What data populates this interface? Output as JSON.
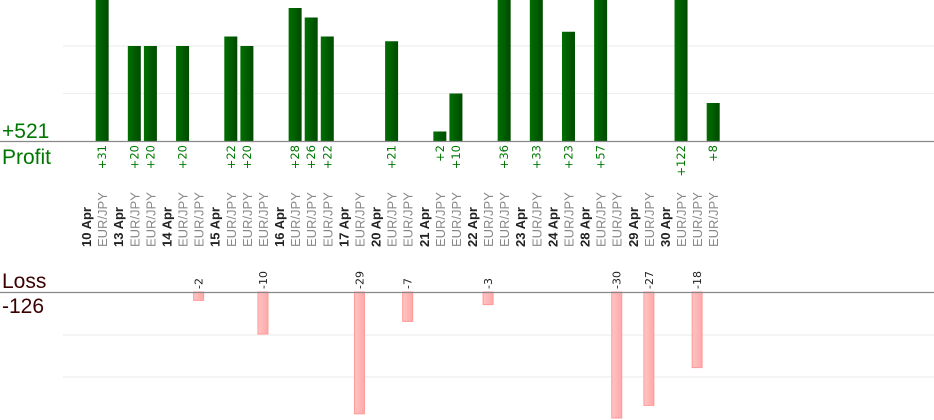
{
  "chart_data": {
    "type": "bar",
    "profit_total": "+521",
    "profit_title": "Profit",
    "loss_total": "-126",
    "loss_title": "Loss",
    "profit_grid_step": 10,
    "loss_grid_step": 10,
    "colors": {
      "profit": "#006600",
      "loss": "#ffb3b3",
      "profit_text": "#007700",
      "loss_text": "#3a0000"
    },
    "groups": [
      {
        "date": "10 Apr",
        "trades": [
          {
            "symbol": "EUR/JPY",
            "value": 31
          }
        ]
      },
      {
        "date": "13 Apr",
        "trades": [
          {
            "symbol": "EUR/JPY",
            "value": 20
          },
          {
            "symbol": "EUR/JPY",
            "value": 20
          }
        ]
      },
      {
        "date": "14 Apr",
        "trades": [
          {
            "symbol": "EUR/JPY",
            "value": 20
          },
          {
            "symbol": "EUR/JPY",
            "value": -2
          }
        ]
      },
      {
        "date": "15 Apr",
        "trades": [
          {
            "symbol": "EUR/JPY",
            "value": 22
          },
          {
            "symbol": "EUR/JPY",
            "value": 20
          },
          {
            "symbol": "EUR/JPY",
            "value": -10
          }
        ]
      },
      {
        "date": "16 Apr",
        "trades": [
          {
            "symbol": "EUR/JPY",
            "value": 28
          },
          {
            "symbol": "EUR/JPY",
            "value": 26
          },
          {
            "symbol": "EUR/JPY",
            "value": 22
          }
        ]
      },
      {
        "date": "17 Apr",
        "trades": [
          {
            "symbol": "EUR/JPY",
            "value": -29
          }
        ]
      },
      {
        "date": "20 Apr",
        "trades": [
          {
            "symbol": "EUR/JPY",
            "value": 21
          },
          {
            "symbol": "EUR/JPY",
            "value": -7
          }
        ]
      },
      {
        "date": "21 Apr",
        "trades": [
          {
            "symbol": "EUR/JPY",
            "value": 2
          },
          {
            "symbol": "EUR/JPY",
            "value": 10
          }
        ]
      },
      {
        "date": "22 Apr",
        "trades": [
          {
            "symbol": "EUR/JPY",
            "value": -3
          },
          {
            "symbol": "EUR/JPY",
            "value": 36
          }
        ]
      },
      {
        "date": "23 Apr",
        "trades": [
          {
            "symbol": "EUR/JPY",
            "value": 33
          }
        ]
      },
      {
        "date": "24 Apr",
        "trades": [
          {
            "symbol": "EUR/JPY",
            "value": 23
          }
        ]
      },
      {
        "date": "28 Apr",
        "trades": [
          {
            "symbol": "EUR/JPY",
            "value": 57
          },
          {
            "symbol": "EUR/JPY",
            "value": -30
          }
        ]
      },
      {
        "date": "29 Apr",
        "trades": [
          {
            "symbol": "EUR/JPY",
            "value": -27
          }
        ]
      },
      {
        "date": "30 Apr",
        "trades": [
          {
            "symbol": "EUR/JPY",
            "value": 122
          },
          {
            "symbol": "EUR/JPY",
            "value": -18
          },
          {
            "symbol": "EUR/JPY",
            "value": 8
          }
        ]
      }
    ]
  }
}
